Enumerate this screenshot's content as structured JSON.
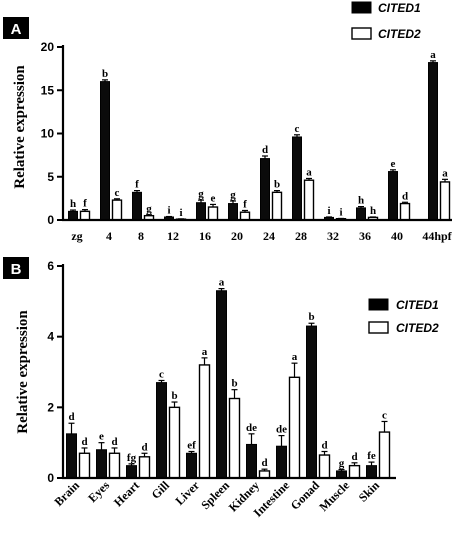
{
  "chart_data": [
    {
      "panel": "A",
      "type": "bar",
      "ylabel": "Relative expression",
      "xlabel": "",
      "ylim": [
        0,
        20
      ],
      "yticks": [
        "0",
        "5",
        "10",
        "15",
        "20"
      ],
      "categories": [
        "zg",
        "4",
        "8",
        "12",
        "16",
        "20",
        "24",
        "28",
        "32",
        "36",
        "40",
        "44hpf"
      ],
      "legend_position": "top-right",
      "series": [
        {
          "name": "CITED1",
          "color": "#0b0b0b",
          "values": [
            1.0,
            16.0,
            3.2,
            0.35,
            2.0,
            1.9,
            7.1,
            9.6,
            0.3,
            1.4,
            5.6,
            18.2
          ],
          "errors": [
            0.15,
            0.2,
            0.2,
            0.05,
            0.3,
            0.3,
            0.3,
            0.25,
            0.05,
            0.15,
            0.2,
            0.2
          ],
          "letters": [
            "h",
            "b",
            "f",
            "i",
            "g",
            "g",
            "d",
            "c",
            "i",
            "h",
            "e",
            "a"
          ]
        },
        {
          "name": "CITED2",
          "color": "#ffffff",
          "values": [
            1.0,
            2.3,
            0.5,
            0.1,
            1.5,
            0.9,
            3.2,
            4.6,
            0.15,
            0.3,
            1.9,
            4.4
          ],
          "errors": [
            0.2,
            0.15,
            0.1,
            0.03,
            0.3,
            0.2,
            0.2,
            0.2,
            0.03,
            0.05,
            0.15,
            0.3
          ],
          "letters": [
            "f",
            "c",
            "g",
            "i",
            "e",
            "f",
            "b",
            "a",
            "i",
            "h",
            "d",
            "a"
          ]
        }
      ]
    },
    {
      "panel": "B",
      "type": "bar",
      "ylabel": "Relative expression",
      "xlabel": "",
      "ylim": [
        0,
        6
      ],
      "yticks": [
        "0",
        "2",
        "4",
        "6"
      ],
      "categories": [
        "Brain",
        "Eyes",
        "Heart",
        "Gill",
        "Liver",
        "Spleen",
        "Kidney",
        "Intestine",
        "Gonad",
        "Muscle",
        "Skin"
      ],
      "legend_position": "top-right",
      "series": [
        {
          "name": "CITED1",
          "color": "#0b0b0b",
          "values": [
            1.25,
            0.8,
            0.35,
            2.7,
            0.7,
            5.3,
            0.95,
            0.9,
            4.3,
            0.2,
            0.35
          ],
          "errors": [
            0.3,
            0.2,
            0.05,
            0.06,
            0.05,
            0.06,
            0.3,
            0.3,
            0.08,
            0.04,
            0.1
          ],
          "letters": [
            "d",
            "e",
            "fg",
            "c",
            "ef",
            "a",
            "de",
            "de",
            "b",
            "g",
            "fe"
          ]
        },
        {
          "name": "CITED2",
          "color": "#ffffff",
          "values": [
            0.7,
            0.7,
            0.6,
            2.0,
            3.2,
            2.25,
            0.2,
            2.85,
            0.65,
            0.35,
            1.3
          ],
          "errors": [
            0.15,
            0.15,
            0.1,
            0.15,
            0.2,
            0.25,
            0.05,
            0.4,
            0.1,
            0.08,
            0.3
          ],
          "letters": [
            "d",
            "d",
            "d",
            "b",
            "a",
            "b",
            "d",
            "a",
            "d",
            "d",
            "c"
          ]
        }
      ]
    }
  ]
}
